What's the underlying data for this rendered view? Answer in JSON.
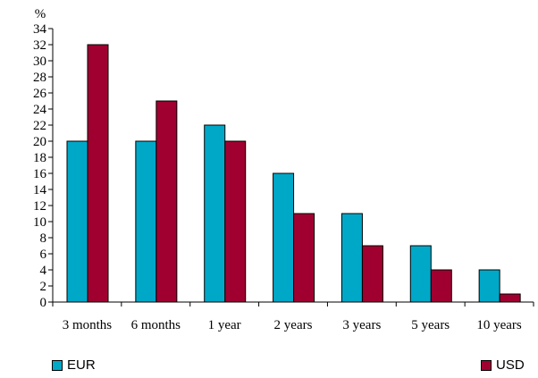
{
  "chart_data": {
    "type": "bar",
    "ylabel": "%",
    "ylim": [
      0,
      34
    ],
    "yticks": [
      0,
      2,
      4,
      6,
      8,
      10,
      12,
      14,
      16,
      18,
      20,
      22,
      24,
      26,
      28,
      30,
      32,
      34
    ],
    "categories": [
      "3 months",
      "6 months",
      "1 year",
      "2 years",
      "3 years",
      "5 years",
      "10 years"
    ],
    "series": [
      {
        "name": "EUR",
        "color": "#00A8C8",
        "values": [
          20,
          20,
          22,
          16,
          11,
          7,
          4
        ]
      },
      {
        "name": "USD",
        "color": "#A00030",
        "values": [
          32,
          25,
          20,
          11,
          7,
          4,
          1
        ]
      }
    ],
    "grid": false,
    "legend_position": "bottom"
  }
}
